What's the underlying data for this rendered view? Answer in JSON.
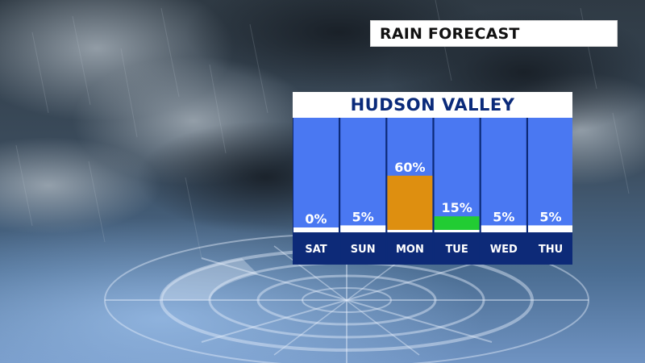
{
  "banner": {
    "title": "RAIN FORECAST"
  },
  "chart_data": {
    "type": "bar",
    "title": "HUDSON VALLEY",
    "categories": [
      "SAT",
      "SUN",
      "MON",
      "TUE",
      "WED",
      "THU"
    ],
    "values": [
      0,
      5,
      60,
      15,
      5,
      5
    ],
    "value_labels": [
      "0%",
      "5%",
      "60%",
      "15%",
      "5%",
      "5%"
    ],
    "unit": "%",
    "ylim": [
      0,
      100
    ],
    "grid": false,
    "legend": "none",
    "colors": {
      "column_bg": "#4a78f2",
      "day_row": "#0d2a78",
      "divider": "#0d2a78",
      "bar_default": "#ffffff",
      "bar_high": "#de8f10",
      "bar_medium": "#22cc33",
      "label_text": "#ffffff"
    }
  }
}
